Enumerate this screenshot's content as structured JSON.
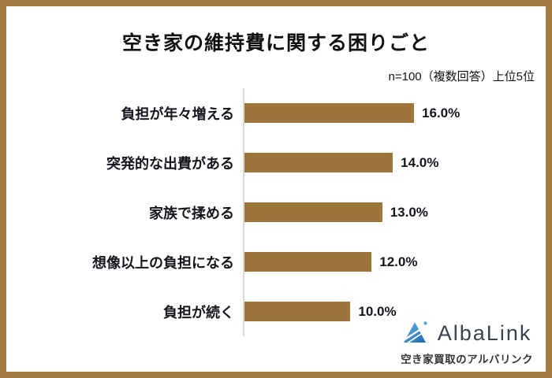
{
  "frame": {
    "border_color": "#A27C44",
    "background_color": "#FFFFFF"
  },
  "chart_data": {
    "type": "bar",
    "orientation": "horizontal",
    "title": "空き家の維持費に関する困りごと",
    "note": "n=100（複数回答）上位5位",
    "categories": [
      "負担が年々増える",
      "突発的な出費がある",
      "家族で揉める",
      "想像以上の負担になる",
      "負担が続く"
    ],
    "values": [
      16.0,
      14.0,
      13.0,
      12.0,
      10.0
    ],
    "value_labels": [
      "16.0%",
      "14.0%",
      "13.0%",
      "12.0%",
      "10.0%"
    ],
    "unit": "%",
    "xlim": [
      0,
      16
    ],
    "grid": false,
    "legend": false,
    "bar_color": "#9B7539",
    "axis_color": "#D8D8D8",
    "text_color": "#15151C"
  },
  "logo": {
    "name": "AlbaLink",
    "tagline": "空き家買取のアルバリンク",
    "icon": "mountain-triangle-icon",
    "colors": {
      "light_blue": "#5BA7D9",
      "dark_blue": "#1C69B0",
      "wordmark": "#3A434C",
      "tagline": "#333333"
    }
  }
}
